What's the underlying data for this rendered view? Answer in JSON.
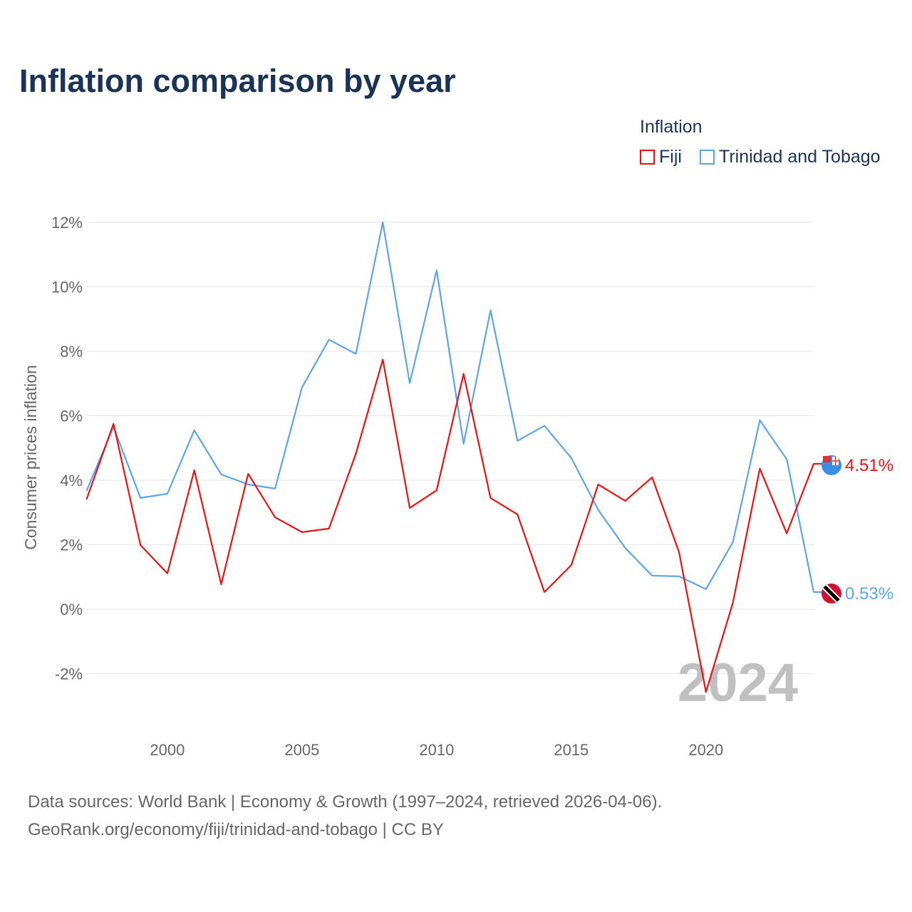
{
  "title": "Inflation comparison by year",
  "legend": {
    "title": "Inflation",
    "items": [
      {
        "label": "Fiji",
        "color": "#ee1111"
      },
      {
        "label": "Trinidad and Tobago",
        "color": "#5aa5ee"
      }
    ]
  },
  "footer": {
    "line1": "Data sources: World Bank | Economy & Growth (1997–2024, retrieved 2026-04-06).",
    "line2": "GeoRank.org/economy/fiji/trinidad-and-tobago | CC BY"
  },
  "chart_data": {
    "type": "line",
    "ylabel": "Consumer prices inflation",
    "xlabel": "",
    "ylim": [
      -2,
      12
    ],
    "xlim": [
      1997,
      2024
    ],
    "yticks": [
      -2,
      0,
      2,
      4,
      6,
      8,
      10,
      12
    ],
    "ytick_labels": [
      "-2%",
      "0%",
      "2%",
      "4%",
      "6%",
      "8%",
      "10%",
      "12%"
    ],
    "xticks": [
      2000,
      2005,
      2010,
      2015,
      2020
    ],
    "xtick_labels": [
      "2000",
      "2005",
      "2010",
      "2015",
      "2020"
    ],
    "watermark_year": "2024",
    "x": [
      1997,
      1998,
      1999,
      2000,
      2001,
      2002,
      2003,
      2004,
      2005,
      2006,
      2007,
      2008,
      2009,
      2010,
      2011,
      2012,
      2013,
      2014,
      2015,
      2016,
      2017,
      2018,
      2019,
      2020,
      2021,
      2022,
      2023,
      2024
    ],
    "series": [
      {
        "name": "Fiji",
        "color": "#ee1111",
        "end_label": "4.51%",
        "values": [
          3.41,
          5.75,
          1.99,
          1.11,
          4.31,
          0.77,
          4.2,
          2.85,
          2.39,
          2.5,
          4.82,
          7.74,
          3.14,
          3.69,
          7.3,
          3.45,
          2.94,
          0.53,
          1.37,
          3.87,
          3.36,
          4.09,
          1.77,
          -2.57,
          0.2,
          4.36,
          2.35,
          4.51
        ]
      },
      {
        "name": "Trinidad and Tobago",
        "color": "#5aa5ee",
        "end_label": "0.53%",
        "values": [
          3.67,
          5.66,
          3.45,
          3.58,
          5.55,
          4.18,
          3.87,
          3.74,
          6.88,
          8.36,
          7.92,
          12.0,
          7.01,
          10.51,
          5.13,
          9.27,
          5.22,
          5.69,
          4.69,
          3.08,
          1.9,
          1.04,
          1.02,
          0.62,
          2.08,
          5.86,
          4.65,
          0.53
        ]
      }
    ]
  }
}
